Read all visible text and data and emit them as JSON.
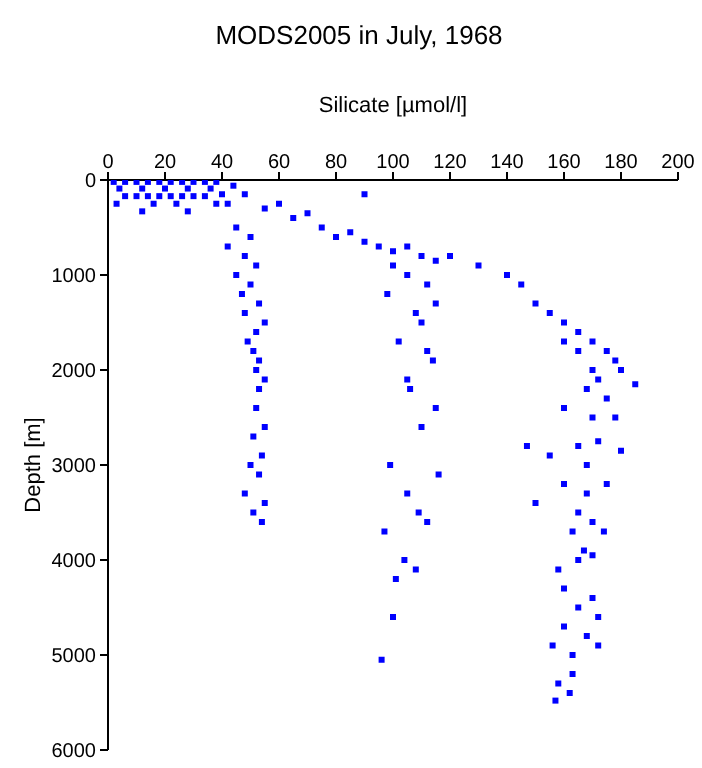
{
  "chart_data": {
    "type": "scatter",
    "title": "MODS2005 in July, 1968",
    "xlabel": "Silicate [µmol/l]",
    "ylabel": "Depth [m]",
    "xlim": [
      0,
      200
    ],
    "xticks": [
      0,
      20,
      40,
      60,
      80,
      100,
      120,
      140,
      160,
      180,
      200
    ],
    "ylim": [
      6000,
      0
    ],
    "yticks": [
      0,
      1000,
      2000,
      3000,
      4000,
      5000,
      6000
    ],
    "marker": "square",
    "series": [
      {
        "color": "#0000ff",
        "x": [
          2,
          6,
          10,
          14,
          18,
          22,
          26,
          30,
          34,
          38,
          4,
          12,
          20,
          28,
          36,
          6,
          10,
          14,
          18,
          22,
          26,
          30,
          34,
          3,
          16,
          24,
          12,
          28,
          38,
          40,
          44,
          48,
          42,
          45,
          50,
          42,
          48,
          52,
          45,
          50,
          47,
          53,
          48,
          55,
          52,
          49,
          51,
          53,
          52,
          55,
          53,
          52,
          55,
          51,
          54,
          50,
          53,
          48,
          55,
          51,
          54,
          55,
          60,
          65,
          70,
          75,
          80,
          85,
          90,
          95,
          100,
          105,
          110,
          115,
          120,
          90,
          100,
          105,
          112,
          98,
          115,
          108,
          110,
          102,
          112,
          114,
          105,
          106,
          115,
          110,
          99,
          116,
          105,
          109,
          97,
          112,
          104,
          108,
          101,
          96,
          100,
          130,
          140,
          145,
          150,
          155,
          160,
          165,
          170,
          175,
          178,
          160,
          165,
          170,
          180,
          172,
          185,
          168,
          175,
          160,
          170,
          178,
          147,
          155,
          165,
          172,
          180,
          168,
          160,
          175,
          150,
          168,
          165,
          170,
          163,
          174,
          167,
          170,
          165,
          158,
          160,
          170,
          165,
          172,
          160,
          168,
          156,
          172,
          163,
          163,
          158,
          157,
          162
        ],
        "values": [
          20,
          20,
          20,
          20,
          20,
          20,
          20,
          20,
          20,
          20,
          90,
          90,
          90,
          90,
          90,
          170,
          170,
          170,
          170,
          170,
          170,
          170,
          170,
          250,
          250,
          250,
          330,
          330,
          250,
          150,
          60,
          150,
          250,
          500,
          600,
          700,
          800,
          900,
          1000,
          1100,
          1200,
          1300,
          1400,
          1500,
          1600,
          1700,
          1800,
          1900,
          2000,
          2100,
          2200,
          2400,
          2600,
          2700,
          2900,
          3000,
          3100,
          3300,
          3400,
          3500,
          3600,
          300,
          250,
          400,
          350,
          500,
          600,
          550,
          650,
          700,
          750,
          700,
          800,
          850,
          800,
          150,
          900,
          1000,
          1100,
          1200,
          1300,
          1400,
          1500,
          1700,
          1800,
          1900,
          2100,
          2200,
          2400,
          2600,
          3000,
          3100,
          3300,
          3500,
          3700,
          3600,
          4000,
          4100,
          4200,
          5050,
          4600,
          900,
          1000,
          1100,
          1300,
          1400,
          1500,
          1600,
          1700,
          1800,
          1900,
          1700,
          1800,
          2000,
          2000,
          2100,
          2150,
          2200,
          2300,
          2400,
          2500,
          2500,
          2800,
          2900,
          2800,
          2750,
          2850,
          3000,
          3200,
          3200,
          3400,
          3300,
          3500,
          3600,
          3700,
          3700,
          3900,
          3950,
          4000,
          4100,
          4300,
          4400,
          4500,
          4600,
          4700,
          4800,
          4900,
          4900,
          5000,
          5200,
          5300,
          5480,
          5400
        ]
      }
    ]
  }
}
